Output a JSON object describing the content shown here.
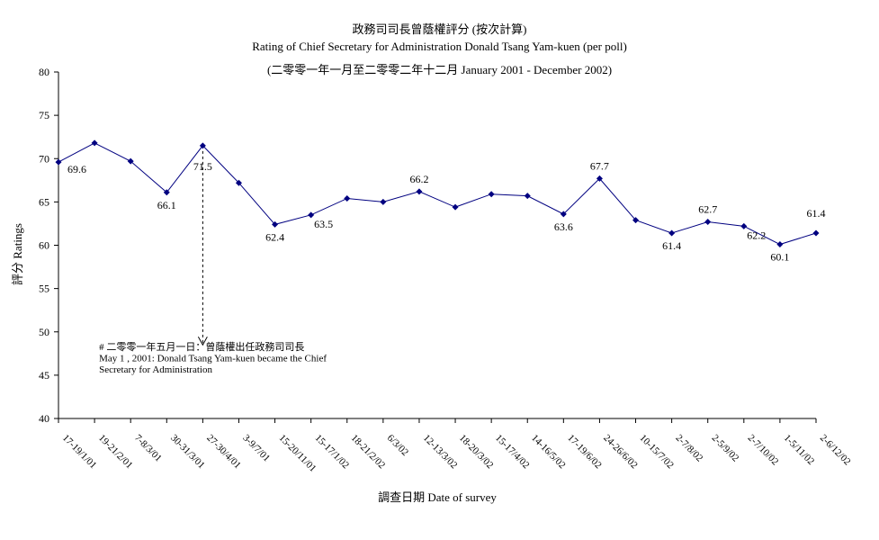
{
  "chart_data": {
    "type": "line",
    "title": "政務司司長曾蔭權評分 (按次計算)",
    "subtitle": "Rating of Chief Secretary for Administration Donald Tsang Yam-kuen  (per poll)",
    "subtitle2": "(二零零一年一月至二零零二年十二月 January 2001 - December 2002)",
    "xlabel": "調查日期 Date of survey",
    "ylabel": "評分 Ratings",
    "ylim": [
      40,
      80
    ],
    "yticks": [
      40,
      45,
      50,
      55,
      60,
      65,
      70,
      75,
      80
    ],
    "grid": false,
    "line_color": "#000080",
    "categories": [
      "17-19/1/01",
      "19-21/2/01",
      "7-8/3/01",
      "30-31/3/01",
      "27-30/4/01",
      "3-9/7/01",
      "15-20/11/01",
      "15-17/1/02",
      "18-21/2/02",
      "6/3/02",
      "12-13/3/02",
      "18-20/3/02",
      "15-17/4/02",
      "14-16/5/02",
      "17-19/6/02",
      "24-26/6/02",
      "10-15/7/02",
      "2-7/8/02",
      "2-5/9/02",
      "2-7/10/02",
      "1-5/11/02",
      "2-6/12/02"
    ],
    "values": [
      69.6,
      71.8,
      69.7,
      66.1,
      71.5,
      67.2,
      62.4,
      63.5,
      65.4,
      65.0,
      66.2,
      64.4,
      65.9,
      65.7,
      63.6,
      67.7,
      62.9,
      61.4,
      62.7,
      62.2,
      60.1,
      61.4
    ],
    "data_labels": [
      {
        "index": 0,
        "text": "69.6"
      },
      {
        "index": 3,
        "text": "66.1"
      },
      {
        "index": 4,
        "text": "71.5"
      },
      {
        "index": 6,
        "text": "62.4"
      },
      {
        "index": 7,
        "text": "63.5"
      },
      {
        "index": 10,
        "text": "66.2"
      },
      {
        "index": 14,
        "text": "63.6"
      },
      {
        "index": 15,
        "text": "67.7"
      },
      {
        "index": 17,
        "text": "61.4"
      },
      {
        "index": 18,
        "text": "62.7"
      },
      {
        "index": 19,
        "text": "62.2"
      },
      {
        "index": 20,
        "text": "60.1"
      },
      {
        "index": 21,
        "text": "61.4"
      }
    ],
    "annotation": {
      "index": 4,
      "line1": "# 二零零一年五月一日：曾蔭權出任政務司司長",
      "line2": "May 1 , 2001: Donald Tsang Yam-kuen became the Chief",
      "line3": "Secretary for Administration"
    }
  }
}
